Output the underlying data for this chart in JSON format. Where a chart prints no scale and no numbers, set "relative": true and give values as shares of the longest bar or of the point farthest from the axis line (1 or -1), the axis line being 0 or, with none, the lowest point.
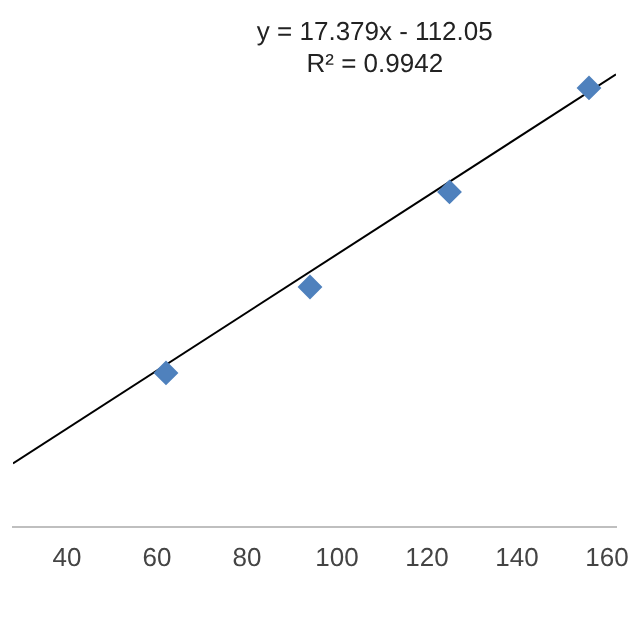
{
  "chart_data": {
    "type": "scatter",
    "relative": true,
    "grid": false,
    "legend": false,
    "tick_labels": "x",
    "annotations": [
      "y = 17.379x - 112.05",
      "R² = 0.9942"
    ],
    "xlim": [
      28,
      162
    ],
    "xticks": [
      40,
      60,
      80,
      100,
      120,
      140,
      160
    ],
    "series": [
      {
        "marker": "diamond",
        "color": "#4f81bd",
        "x": [
          62,
          94,
          125,
          156
        ],
        "values": [
          0.34,
          0.53,
          0.74,
          0.97
        ]
      },
      {
        "type": "line",
        "marker": "none",
        "color": "#000000",
        "x": [
          28,
          162
        ],
        "values": [
          0.14,
          1
        ]
      }
    ]
  }
}
